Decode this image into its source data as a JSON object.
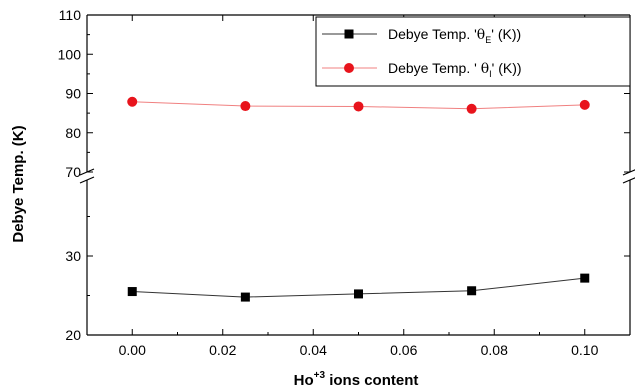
{
  "chart_data": {
    "type": "line",
    "x": [
      0.0,
      0.025,
      0.05,
      0.075,
      0.1
    ],
    "x_tick_labels": [
      "0.00",
      "0.02",
      "0.04",
      "0.06",
      "0.08",
      "0.10"
    ],
    "x_tick_values": [
      0.0,
      0.02,
      0.04,
      0.06,
      0.08,
      0.1
    ],
    "xlim": [
      -0.01,
      0.11
    ],
    "xlabel_base": "Ho",
    "xlabel_sup": "+3",
    "xlabel_rest": " ions content",
    "ylabel": "Debye Temp. (K)",
    "axis_break": true,
    "ylim_upper": [
      70,
      110
    ],
    "ylim_lower": [
      20,
      38
    ],
    "y_tick_labels_upper": [
      "70",
      "80",
      "90",
      "100",
      "110"
    ],
    "y_tick_labels_lower": [
      "20",
      "30"
    ],
    "grid": false,
    "legend_position": "top-right",
    "series": [
      {
        "name": "Debye Temp. 'θE' (K))",
        "legend_prefix": "Debye Temp. '",
        "legend_symbol": "θ",
        "legend_sub": "E",
        "legend_suffix": "' (K))",
        "marker": "square",
        "color": "#000000",
        "line_color": "#333333",
        "values": [
          25.5,
          24.8,
          25.2,
          25.6,
          27.2
        ]
      },
      {
        "name": "Debye Temp. ' θI' (K))",
        "legend_prefix": "Debye Temp. ' ",
        "legend_symbol": "θ",
        "legend_sub": "I",
        "legend_suffix": "' (K))",
        "marker": "circle",
        "color": "#e8141c",
        "line_color": "#f08080",
        "values": [
          87.9,
          86.8,
          86.7,
          86.1,
          87.1
        ]
      }
    ]
  }
}
